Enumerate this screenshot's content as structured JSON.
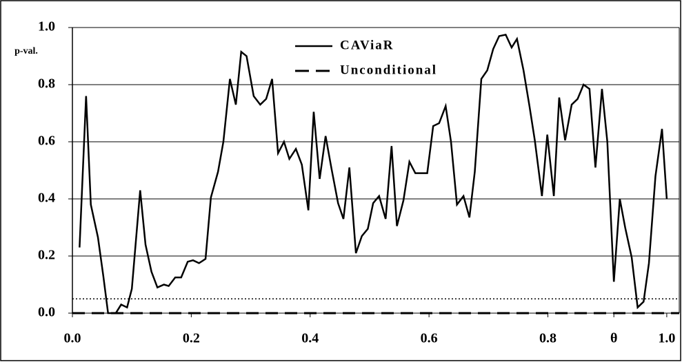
{
  "chart_data": {
    "type": "line",
    "y_label": "p-val.",
    "xlim": [
      0,
      1.021
    ],
    "ylim": [
      0,
      1
    ],
    "xticks": [
      {
        "value": 0,
        "label": "0.0"
      },
      0.2,
      0.4,
      0.6,
      0.8,
      {
        "value": 0.911,
        "label": "θ"
      },
      {
        "value": 1,
        "label": "1.0"
      }
    ],
    "yticks": [
      {
        "value": 0,
        "label": "0.0"
      },
      0.2,
      0.4,
      0.6,
      0.8,
      {
        "value": 1,
        "label": "1.0"
      }
    ],
    "grid": true,
    "reference_line": 0.05,
    "series": [
      {
        "name": "CAViaR",
        "color": "#000000",
        "style": "solid",
        "x": [
          0.012,
          0.023,
          0.031,
          0.043,
          0.052,
          0.06,
          0.073,
          0.082,
          0.092,
          0.1,
          0.114,
          0.123,
          0.133,
          0.143,
          0.154,
          0.162,
          0.173,
          0.183,
          0.194,
          0.203,
          0.213,
          0.224,
          0.233,
          0.245,
          0.254,
          0.265,
          0.275,
          0.284,
          0.293,
          0.305,
          0.316,
          0.326,
          0.336,
          0.346,
          0.356,
          0.365,
          0.376,
          0.386,
          0.397,
          0.406,
          0.416,
          0.426,
          0.436,
          0.447,
          0.456,
          0.466,
          0.477,
          0.487,
          0.497,
          0.506,
          0.516,
          0.527,
          0.537,
          0.546,
          0.557,
          0.567,
          0.577,
          0.587,
          0.597,
          0.607,
          0.617,
          0.628,
          0.637,
          0.647,
          0.658,
          0.668,
          0.677,
          0.688,
          0.698,
          0.708,
          0.718,
          0.729,
          0.739,
          0.748,
          0.759,
          0.769,
          0.778,
          0.79,
          0.799,
          0.81,
          0.819,
          0.829,
          0.84,
          0.85,
          0.86,
          0.87,
          0.88,
          0.891,
          0.9,
          0.911,
          0.921,
          0.93,
          0.941,
          0.951,
          0.961,
          0.97,
          0.981,
          0.992,
          1.0
        ],
        "values": [
          0.23,
          0.76,
          0.38,
          0.265,
          0.13,
          0.0,
          0.0,
          0.03,
          0.02,
          0.085,
          0.43,
          0.24,
          0.145,
          0.09,
          0.1,
          0.095,
          0.125,
          0.125,
          0.18,
          0.185,
          0.175,
          0.19,
          0.405,
          0.495,
          0.6,
          0.82,
          0.73,
          0.915,
          0.9,
          0.76,
          0.73,
          0.75,
          0.82,
          0.56,
          0.6,
          0.54,
          0.575,
          0.52,
          0.36,
          0.705,
          0.47,
          0.62,
          0.505,
          0.385,
          0.33,
          0.51,
          0.21,
          0.27,
          0.295,
          0.385,
          0.41,
          0.33,
          0.585,
          0.305,
          0.395,
          0.53,
          0.49,
          0.49,
          0.49,
          0.655,
          0.665,
          0.725,
          0.6,
          0.38,
          0.41,
          0.335,
          0.495,
          0.82,
          0.85,
          0.925,
          0.97,
          0.975,
          0.93,
          0.96,
          0.85,
          0.725,
          0.605,
          0.41,
          0.625,
          0.41,
          0.755,
          0.605,
          0.73,
          0.75,
          0.8,
          0.785,
          0.51,
          0.785,
          0.6,
          0.11,
          0.4,
          0.3,
          0.195,
          0.02,
          0.04,
          0.175,
          0.48,
          0.645,
          0.4
        ]
      },
      {
        "name": "Unconditional",
        "color": "#000000",
        "style": "dashed",
        "x": [
          0,
          1.021
        ],
        "values": [
          0,
          0
        ]
      }
    ]
  }
}
